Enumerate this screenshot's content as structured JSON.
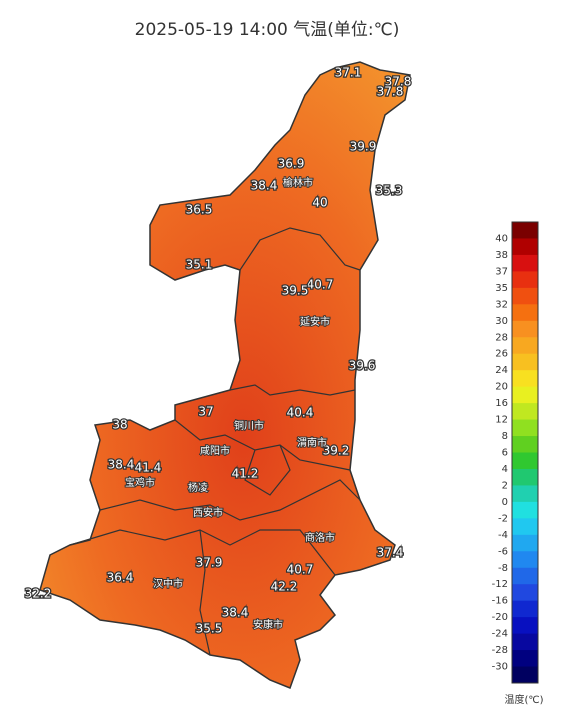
{
  "title": "2025-05-19 14:00 气温(单位:℃)",
  "stations": [
    37.1,
    37.8,
    37.8,
    39.9,
    36.9,
    38.4,
    40,
    35.3,
    36.5,
    35.1,
    40.7,
    39.5,
    39.6,
    40.4,
    37,
    38,
    39.2,
    38.4,
    41.4,
    41.2,
    37.4,
    40.7,
    37.9,
    36.4,
    42.2,
    32.2,
    38.4,
    35.5
  ],
  "cities": [
    "榆林市",
    "延安市",
    "铜川市",
    "咸阳市",
    "渭南市",
    "宝鸡市",
    "杨凌",
    "西安市",
    "商洛市",
    "汉中市",
    "安康市"
  ],
  "legend": {
    "title": "温度(℃)",
    "ticks": [
      40,
      38,
      37,
      35,
      32,
      30,
      28,
      26,
      24,
      20,
      16,
      12,
      8,
      6,
      4,
      2,
      0,
      -2,
      -4,
      -6,
      -8,
      -12,
      -16,
      -20,
      -24,
      -28,
      -30
    ],
    "colors": [
      "#7a0000",
      "#b00000",
      "#d81010",
      "#e83010",
      "#f05010",
      "#f57010",
      "#f89020",
      "#f8a820",
      "#f8c020",
      "#f8e020",
      "#e8f020",
      "#c0e820",
      "#90e020",
      "#60d020",
      "#30c830",
      "#20c870",
      "#20d0b0",
      "#20e0e0",
      "#20c8f0",
      "#20a8f0",
      "#2088f0",
      "#2068e8",
      "#2048e0",
      "#1028d0",
      "#0810c0",
      "#0808a0",
      "#000080",
      "#000060"
    ]
  }
}
